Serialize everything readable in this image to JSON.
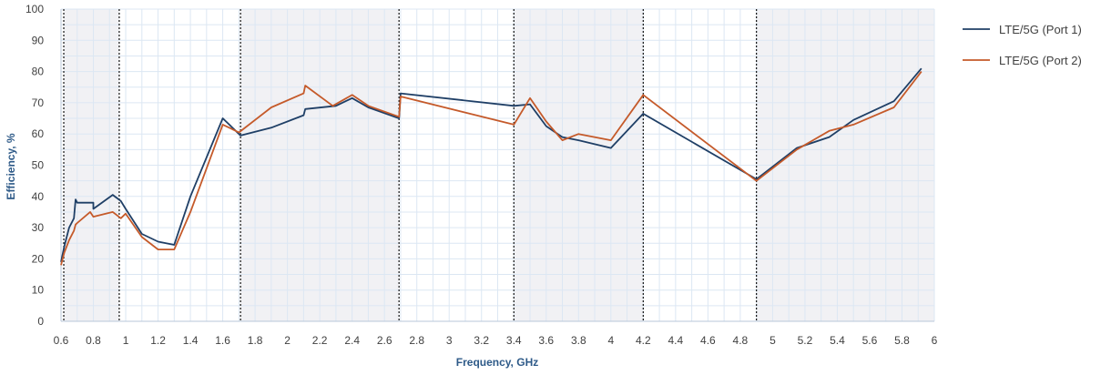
{
  "chart_data": {
    "type": "line",
    "title": "",
    "xlabel": "Frequency, GHz",
    "ylabel": "Efficiency, %",
    "xlim": [
      0.6,
      6
    ],
    "ylim": [
      0,
      100
    ],
    "x_ticks": [
      "0.6",
      "0.8",
      "1",
      "1.2",
      "1.4",
      "1.6",
      "1.8",
      "2",
      "2.2",
      "2.4",
      "2.6",
      "2.8",
      "3",
      "3.2",
      "3.4",
      "3.6",
      "3.8",
      "4",
      "4.2",
      "4.4",
      "4.6",
      "4.8",
      "5",
      "5.2",
      "5.4",
      "5.6",
      "5.8",
      "6"
    ],
    "y_ticks": [
      "0",
      "10",
      "20",
      "30",
      "40",
      "50",
      "60",
      "70",
      "80",
      "90",
      "100"
    ],
    "grid": true,
    "legend_position": "right",
    "band_edges": [
      0.617,
      0.96,
      1.71,
      2.69,
      3.4,
      4.2,
      4.9
    ],
    "series": [
      {
        "name": "LTE/5G (Port 1)",
        "color": "#1f3f66",
        "points": [
          [
            0.6,
            19
          ],
          [
            0.62,
            24
          ],
          [
            0.65,
            30
          ],
          [
            0.68,
            33
          ],
          [
            0.69,
            39
          ],
          [
            0.7,
            38
          ],
          [
            0.8,
            38
          ],
          [
            0.8,
            36
          ],
          [
            0.92,
            40.5
          ],
          [
            0.97,
            38.5
          ],
          [
            1.0,
            36
          ],
          [
            1.1,
            28
          ],
          [
            1.2,
            25.5
          ],
          [
            1.3,
            24.5
          ],
          [
            1.4,
            40
          ],
          [
            1.6,
            65
          ],
          [
            1.7,
            60
          ],
          [
            1.71,
            59.5
          ],
          [
            1.9,
            62
          ],
          [
            2.1,
            66
          ],
          [
            2.11,
            68
          ],
          [
            2.3,
            69
          ],
          [
            2.4,
            71.5
          ],
          [
            2.5,
            68.5
          ],
          [
            2.69,
            65
          ],
          [
            2.7,
            73
          ],
          [
            3.4,
            69
          ],
          [
            3.5,
            69.5
          ],
          [
            3.6,
            62.5
          ],
          [
            3.7,
            59
          ],
          [
            3.8,
            58
          ],
          [
            4.0,
            55.5
          ],
          [
            4.2,
            66.5
          ],
          [
            4.9,
            45.5
          ],
          [
            5.15,
            55.5
          ],
          [
            5.35,
            59
          ],
          [
            5.5,
            64.5
          ],
          [
            5.75,
            70.5
          ],
          [
            5.92,
            81
          ]
        ]
      },
      {
        "name": "LTE/5G (Port 2)",
        "color": "#c55a2a",
        "points": [
          [
            0.6,
            18
          ],
          [
            0.62,
            22
          ],
          [
            0.65,
            26
          ],
          [
            0.68,
            29
          ],
          [
            0.69,
            31
          ],
          [
            0.7,
            31.5
          ],
          [
            0.78,
            35
          ],
          [
            0.8,
            33.5
          ],
          [
            0.92,
            35
          ],
          [
            0.97,
            33
          ],
          [
            1.0,
            34.5
          ],
          [
            1.1,
            27
          ],
          [
            1.2,
            23
          ],
          [
            1.3,
            23
          ],
          [
            1.4,
            35
          ],
          [
            1.6,
            63
          ],
          [
            1.7,
            60.5
          ],
          [
            1.9,
            68.5
          ],
          [
            2.1,
            73
          ],
          [
            2.11,
            75.5
          ],
          [
            2.28,
            69
          ],
          [
            2.4,
            72.5
          ],
          [
            2.5,
            69
          ],
          [
            2.69,
            65.5
          ],
          [
            2.7,
            72
          ],
          [
            3.4,
            63
          ],
          [
            3.5,
            71.5
          ],
          [
            3.6,
            64
          ],
          [
            3.7,
            58
          ],
          [
            3.8,
            60
          ],
          [
            4.0,
            58
          ],
          [
            4.2,
            72.5
          ],
          [
            4.9,
            45
          ],
          [
            5.15,
            55
          ],
          [
            5.35,
            61
          ],
          [
            5.5,
            63
          ],
          [
            5.75,
            68.5
          ],
          [
            5.92,
            80
          ]
        ]
      }
    ]
  }
}
